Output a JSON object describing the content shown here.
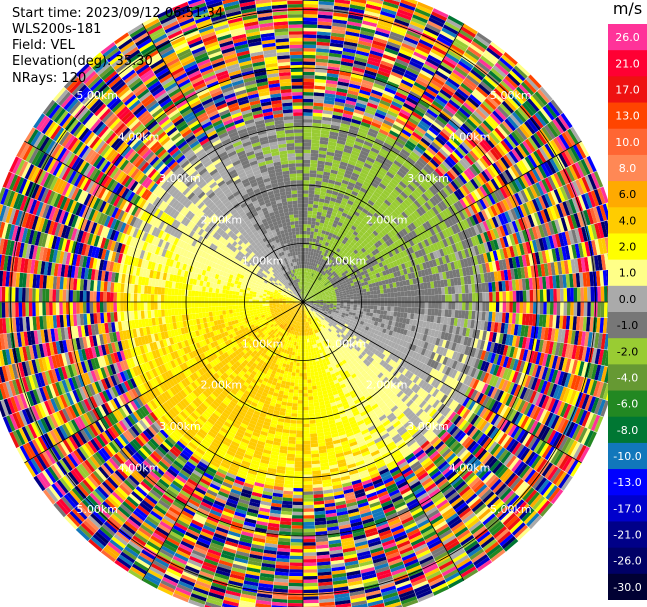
{
  "info": {
    "start_time": "Start time: 2023/09/12 06:51:34",
    "station": "WLS200s-181",
    "field": "Field: VEL",
    "elevation": "Elevation(deg): 35.30",
    "nrays": "NRays: 120"
  },
  "colorbar": {
    "unit": "m/s",
    "ticks": [
      "26.0",
      "21.0",
      "17.0",
      "13.0",
      "10.0",
      "8.0",
      "6.0",
      "4.0",
      "2.0",
      "1.0",
      "0.0",
      "-1.0",
      "-2.0",
      "-4.0",
      "-6.0",
      "-8.0",
      "-10.0",
      "-13.0",
      "-17.0",
      "-21.0",
      "-26.0",
      "-30.0"
    ],
    "colors": [
      "#ff3399",
      "#ff0033",
      "#ee1111",
      "#ff4400",
      "#ff6633",
      "#ff8855",
      "#ffaa00",
      "#ffcc00",
      "#ffff00",
      "#ffff88",
      "#aaaaaa",
      "#777777",
      "#99cc33",
      "#669933",
      "#228822",
      "#007733",
      "#1177bb",
      "#0000ff",
      "#0000cc",
      "#000088",
      "#000066",
      "#000033"
    ]
  },
  "chart_data": {
    "type": "ppi",
    "field": "VEL",
    "units": "m/s",
    "nrays": 120,
    "elevation_deg": 35.3,
    "range_ring_labels": [
      "1.00km",
      "2.00km",
      "3.00km",
      "4.00km",
      "5.00km"
    ],
    "velocity_scale": [
      26.0,
      21.0,
      17.0,
      13.0,
      10.0,
      8.0,
      6.0,
      4.0,
      2.0,
      1.0,
      0.0,
      -1.0,
      -2.0,
      -4.0,
      -6.0,
      -8.0,
      -10.0,
      -13.0,
      -17.0,
      -21.0,
      -26.0,
      -30.0
    ],
    "max_range_km": 5.5,
    "noise_beyond_km": 3.2
  }
}
